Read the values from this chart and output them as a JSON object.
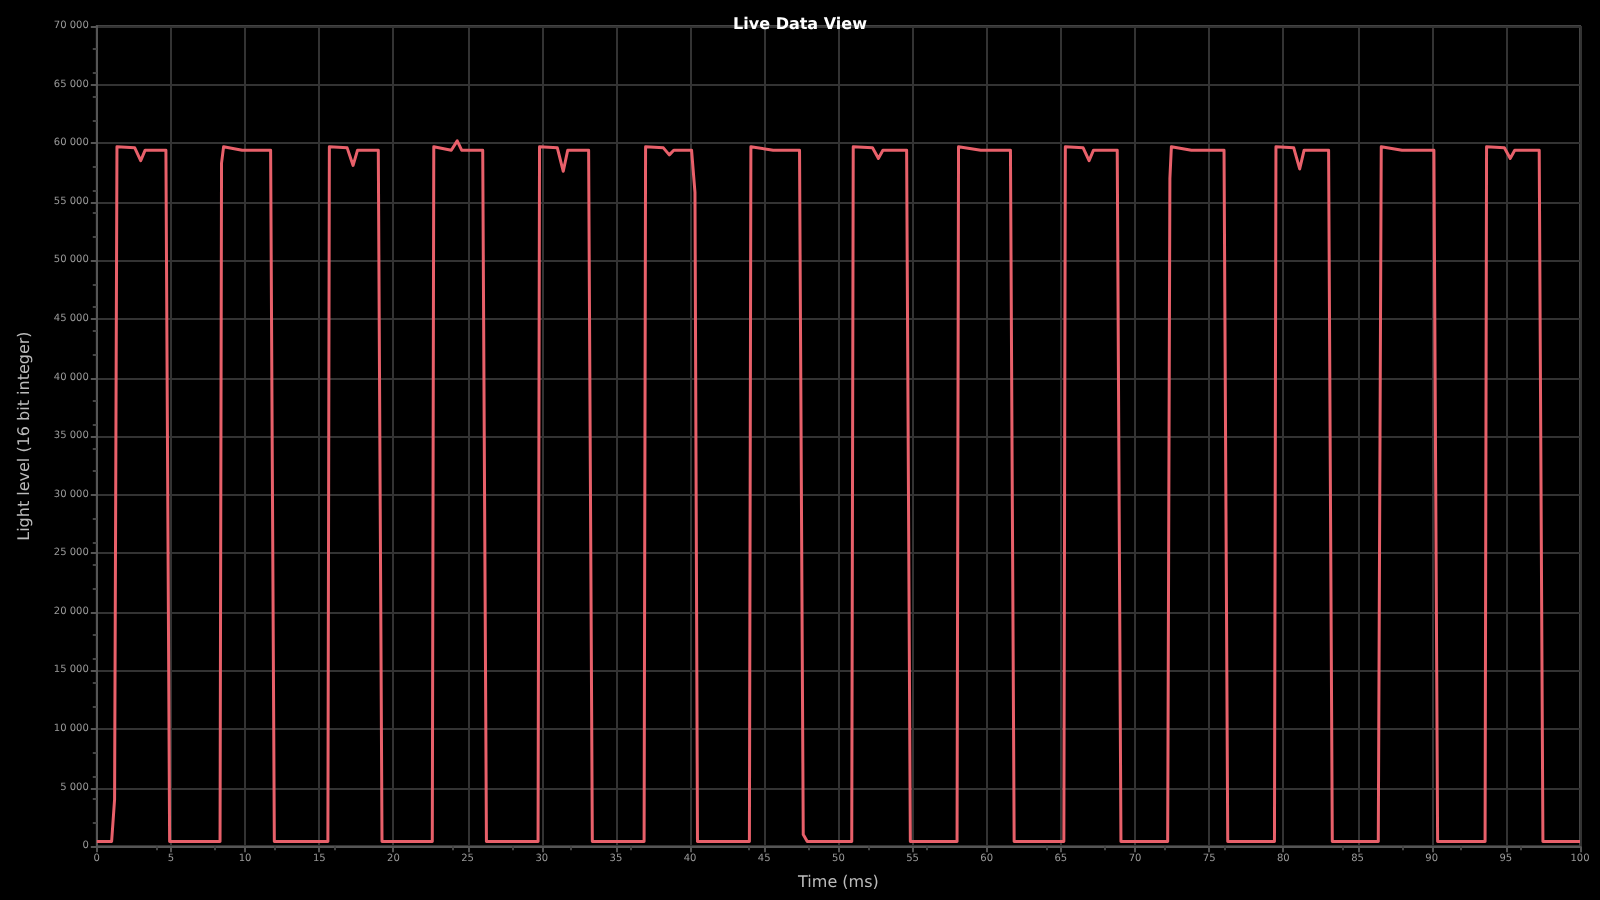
{
  "chart_data": {
    "type": "line",
    "title": "Live Data View",
    "xlabel": "Time (ms)",
    "ylabel": "Light level (16 bit integer)",
    "grid": true,
    "marker": "none",
    "line_style": "solid",
    "xlim": [
      0,
      100
    ],
    "xticks": [
      0,
      5,
      10,
      15,
      20,
      25,
      30,
      35,
      40,
      45,
      50,
      55,
      60,
      65,
      70,
      75,
      80,
      85,
      90,
      95,
      100
    ],
    "ylim": [
      0,
      70000
    ],
    "yticks": [
      0,
      {
        "value": 5000,
        "label": "5 000"
      },
      {
        "value": 10000,
        "label": "10 000"
      },
      {
        "value": 15000,
        "label": "15 000"
      },
      {
        "value": 20000,
        "label": "20 000"
      },
      {
        "value": 25000,
        "label": "25 000"
      },
      {
        "value": 30000,
        "label": "30 000"
      },
      {
        "value": 35000,
        "label": "35 000"
      },
      {
        "value": 40000,
        "label": "40 000"
      },
      {
        "value": 45000,
        "label": "45 000"
      },
      {
        "value": 50000,
        "label": "50 000"
      },
      {
        "value": 55000,
        "label": "55 000"
      },
      {
        "value": 60000,
        "label": "60 000"
      },
      {
        "value": 65000,
        "label": "65 000"
      },
      {
        "value": 70000,
        "label": "70 000"
      }
    ],
    "series": [
      {
        "color": "#e8606a",
        "x": [
          0,
          1.0,
          1.2,
          1.36,
          2.56,
          2.96,
          3.26,
          4.66,
          4.91,
          8.31,
          8.41,
          8.55,
          9.8,
          11.72,
          11.97,
          15.58,
          15.68,
          16.88,
          17.28,
          17.58,
          18.98,
          19.23,
          22.62,
          22.72,
          23.9,
          24.3,
          24.6,
          26.02,
          26.27,
          29.75,
          29.85,
          31.05,
          31.45,
          31.75,
          33.16,
          33.41,
          36.9,
          37.0,
          38.2,
          38.6,
          38.9,
          40.1,
          40.33,
          40.5,
          44.0,
          44.1,
          45.6,
          47.38,
          47.63,
          47.9,
          50.9,
          51.0,
          52.3,
          52.7,
          53.0,
          54.6,
          54.85,
          58.0,
          58.1,
          59.6,
          61.6,
          61.85,
          65.2,
          65.3,
          66.5,
          66.9,
          67.2,
          68.8,
          69.05,
          72.2,
          72.35,
          72.45,
          73.8,
          76.0,
          76.25,
          79.4,
          79.5,
          80.7,
          81.1,
          81.4,
          83.05,
          83.3,
          86.4,
          86.6,
          88.0,
          90.15,
          90.4,
          93.6,
          93.7,
          94.9,
          95.3,
          95.6,
          97.25,
          97.5,
          100
        ],
        "values": [
          400,
          400,
          4000,
          59700,
          59600,
          58500,
          59400,
          59400,
          400,
          400,
          58300,
          59700,
          59400,
          59400,
          400,
          400,
          59700,
          59600,
          58100,
          59400,
          59400,
          400,
          400,
          59700,
          59400,
          60200,
          59400,
          59400,
          400,
          400,
          59700,
          59600,
          57600,
          59400,
          59400,
          400,
          400,
          59700,
          59600,
          59000,
          59400,
          59400,
          55800,
          400,
          400,
          59700,
          59400,
          59400,
          1000,
          400,
          400,
          59700,
          59600,
          58700,
          59400,
          59400,
          400,
          400,
          59700,
          59400,
          59400,
          400,
          400,
          59700,
          59600,
          58500,
          59400,
          59400,
          400,
          400,
          57000,
          59700,
          59400,
          59400,
          400,
          400,
          59700,
          59600,
          57800,
          59400,
          59400,
          400,
          400,
          59700,
          59400,
          59400,
          400,
          400,
          59700,
          59600,
          58700,
          59400,
          59400,
          400,
          400
        ]
      }
    ]
  }
}
